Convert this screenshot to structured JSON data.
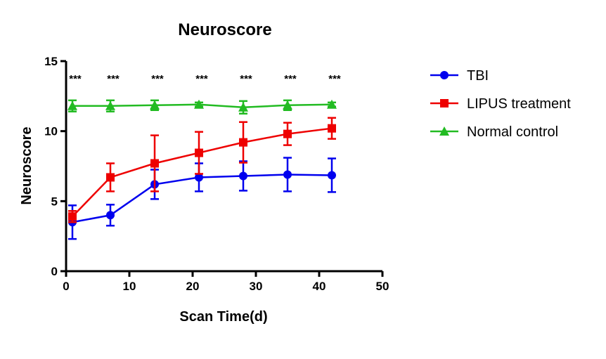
{
  "chart_data": {
    "type": "line",
    "title": "Neuroscore",
    "xlabel": "Scan Time(d)",
    "ylabel": "Neuroscore",
    "xlim": [
      0,
      50
    ],
    "ylim": [
      0,
      15
    ],
    "x_ticks": [
      0,
      10,
      20,
      30,
      40,
      50
    ],
    "y_ticks": [
      0,
      5,
      10,
      15
    ],
    "grid": false,
    "legend_position": "right",
    "x": [
      1,
      7,
      14,
      21,
      28,
      35,
      42
    ],
    "series": [
      {
        "name": "TBI",
        "color": "#0000ee",
        "marker": "circle",
        "values": [
          3.5,
          4.0,
          6.2,
          6.7,
          6.8,
          6.9,
          6.85
        ],
        "errors": [
          1.2,
          0.75,
          1.05,
          1.0,
          1.05,
          1.2,
          1.2
        ]
      },
      {
        "name": "LIPUS treatment",
        "color": "#ee0000",
        "marker": "square",
        "values": [
          3.9,
          6.7,
          7.7,
          8.45,
          9.2,
          9.8,
          10.2
        ],
        "errors": [
          0.4,
          1.0,
          2.0,
          1.5,
          1.45,
          0.8,
          0.75
        ]
      },
      {
        "name": "Normal control",
        "color": "#22bb22",
        "marker": "triangle",
        "values": [
          11.8,
          11.8,
          11.85,
          11.9,
          11.7,
          11.85,
          11.9
        ],
        "errors": [
          0.4,
          0.4,
          0.35,
          0.15,
          0.45,
          0.35,
          0.15
        ]
      }
    ],
    "annotations": [
      {
        "x": 1,
        "text": "***"
      },
      {
        "x": 7,
        "text": "***"
      },
      {
        "x": 14,
        "text": "***"
      },
      {
        "x": 21,
        "text": "***"
      },
      {
        "x": 28,
        "text": "***"
      },
      {
        "x": 35,
        "text": "***"
      },
      {
        "x": 42,
        "text": "***"
      }
    ]
  }
}
